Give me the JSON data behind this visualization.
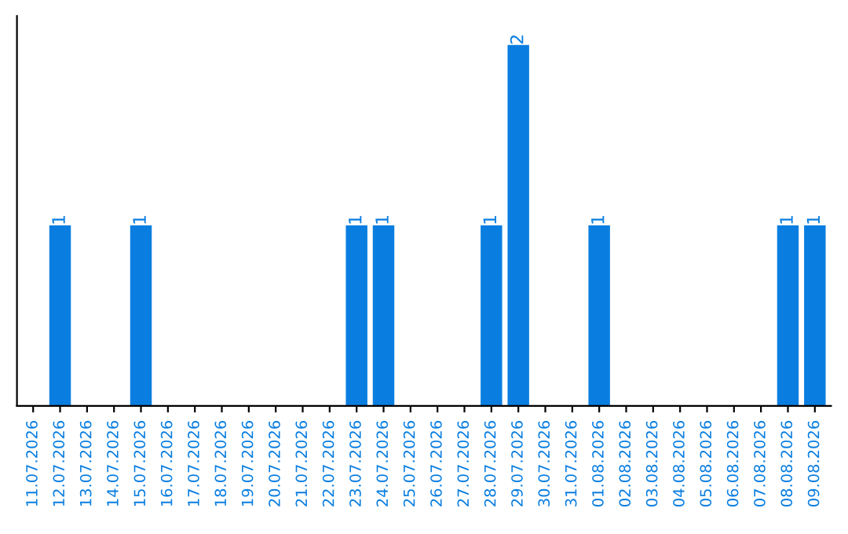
{
  "chart_data": {
    "type": "bar",
    "categories": [
      "11.07.2026",
      "12.07.2026",
      "13.07.2026",
      "14.07.2026",
      "15.07.2026",
      "16.07.2026",
      "17.07.2026",
      "18.07.2026",
      "19.07.2026",
      "20.07.2026",
      "21.07.2026",
      "22.07.2026",
      "23.07.2026",
      "24.07.2026",
      "25.07.2026",
      "26.07.2026",
      "27.07.2026",
      "28.07.2026",
      "29.07.2026",
      "30.07.2026",
      "31.07.2026",
      "01.08.2026",
      "02.08.2026",
      "03.08.2026",
      "04.08.2026",
      "05.08.2026",
      "06.08.2026",
      "07.08.2026",
      "08.08.2026",
      "09.08.2026"
    ],
    "values": [
      0,
      1,
      0,
      0,
      1,
      0,
      0,
      0,
      0,
      0,
      0,
      0,
      1,
      1,
      0,
      0,
      0,
      1,
      2,
      0,
      0,
      1,
      0,
      0,
      0,
      0,
      0,
      0,
      1,
      1
    ],
    "value_labels": [
      null,
      "1",
      null,
      null,
      "1",
      null,
      null,
      null,
      null,
      null,
      null,
      null,
      "1",
      "1",
      null,
      null,
      null,
      "1",
      "2",
      null,
      null,
      "1",
      null,
      null,
      null,
      null,
      null,
      null,
      "1",
      "1"
    ],
    "color": "#0a7ee0",
    "tick_labels": "x"
  }
}
